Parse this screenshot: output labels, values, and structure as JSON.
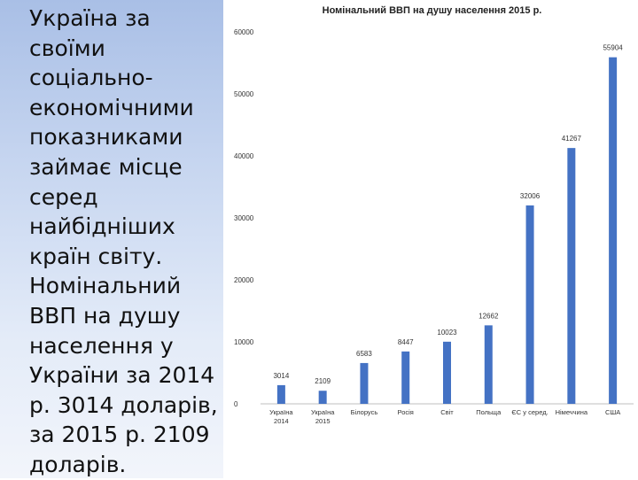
{
  "slide": {
    "text": "Україна за своїми соціально-економічними показниками займає місце серед найбідніших країн світу. Номінальний ВВП на душу населення у України за 2014 р. 3014 доларів, за 2015 р. 2109 доларів."
  },
  "chart_data": {
    "type": "bar",
    "title": "Номінальний ВВП на душу населення 2015 р.",
    "xlabel": "",
    "ylabel": "",
    "ylim": [
      0,
      60000
    ],
    "yticks": [
      0,
      10000,
      20000,
      30000,
      40000,
      50000,
      60000
    ],
    "grid": false,
    "legend": "none",
    "bar_color": "#4472C4",
    "categories": [
      "Україна 2014",
      "Україна 2015",
      "Білорусь",
      "Росія",
      "Світ",
      "Польща",
      "ЄС у серед.",
      "Німеччина",
      "США"
    ],
    "values": [
      3014,
      2109,
      6583,
      8447,
      10023,
      12662,
      32006,
      41267,
      55904
    ],
    "labels": [
      "3014",
      "2109",
      "6583",
      "8447",
      "10023",
      "12662",
      "32006",
      "41267",
      "55904"
    ]
  }
}
